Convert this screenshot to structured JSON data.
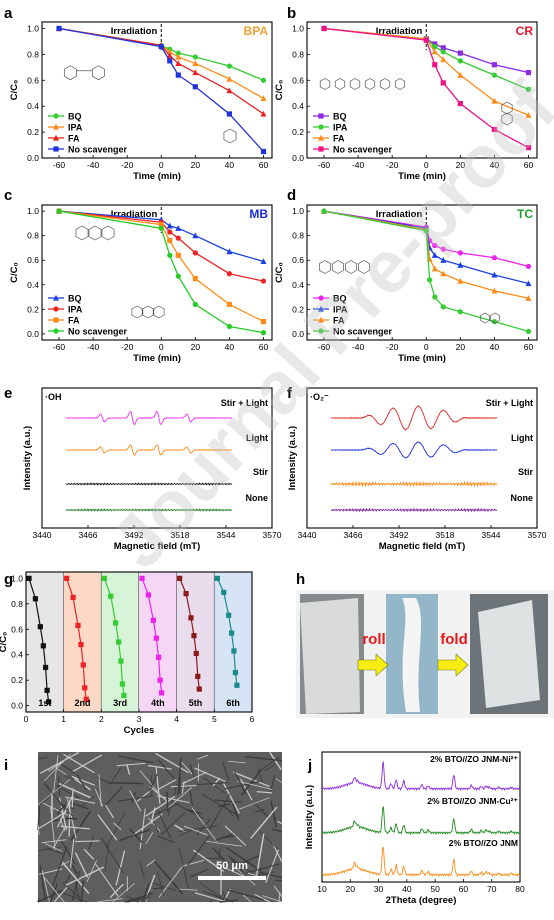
{
  "watermark": "Journal Pre-proof",
  "chart_data": [
    {
      "panel": "a",
      "type": "line",
      "tag": "BPA",
      "tag_color": "#f0a030",
      "annotation": "Irradiation",
      "xlabel": "Time (min)",
      "ylabel": "C/C₀",
      "xlim": [
        -70,
        65
      ],
      "ylim": [
        0,
        1.05
      ],
      "xticks": [
        -60,
        -40,
        -20,
        0,
        20,
        40,
        60
      ],
      "yticks": [
        0.0,
        0.2,
        0.4,
        0.6,
        0.8,
        1.0
      ],
      "x": [
        -60,
        0,
        5,
        10,
        20,
        40,
        60
      ],
      "series": [
        {
          "name": "BQ",
          "color": "#33cc33",
          "marker": "circle",
          "values": [
            1.0,
            0.87,
            0.84,
            0.81,
            0.78,
            0.71,
            0.6
          ]
        },
        {
          "name": "IPA",
          "color": "#ff8c1a",
          "marker": "tri-up",
          "values": [
            1.0,
            0.87,
            0.82,
            0.78,
            0.73,
            0.61,
            0.46
          ]
        },
        {
          "name": "FA",
          "color": "#ee2222",
          "marker": "tri-up",
          "values": [
            1.0,
            0.87,
            0.79,
            0.73,
            0.66,
            0.52,
            0.34
          ]
        },
        {
          "name": "No scavenger",
          "color": "#2233dd",
          "marker": "square",
          "values": [
            1.0,
            0.86,
            0.75,
            0.64,
            0.55,
            0.34,
            0.05
          ]
        }
      ]
    },
    {
      "panel": "b",
      "type": "line",
      "tag": "CR",
      "tag_color": "#e8142a",
      "annotation": "Irradiation",
      "xlabel": "Time (min)",
      "ylabel": "C/C₀",
      "xlim": [
        -70,
        65
      ],
      "ylim": [
        0,
        1.05
      ],
      "xticks": [
        -60,
        -40,
        -20,
        0,
        20,
        40,
        60
      ],
      "yticks": [
        0.0,
        0.2,
        0.4,
        0.6,
        0.8,
        1.0
      ],
      "x": [
        -60,
        0,
        5,
        10,
        20,
        40,
        60
      ],
      "series": [
        {
          "name": "BQ",
          "color": "#8a2be2",
          "marker": "square",
          "values": [
            1.0,
            0.92,
            0.88,
            0.85,
            0.81,
            0.72,
            0.66
          ]
        },
        {
          "name": "IPA",
          "color": "#33cc33",
          "marker": "circle",
          "values": [
            1.0,
            0.92,
            0.86,
            0.82,
            0.75,
            0.64,
            0.53
          ]
        },
        {
          "name": "FA",
          "color": "#ff8c1a",
          "marker": "tri-up",
          "values": [
            1.0,
            0.92,
            0.82,
            0.76,
            0.64,
            0.44,
            0.33
          ]
        },
        {
          "name": "No scavenger",
          "color": "#ee1188",
          "marker": "square",
          "values": [
            1.0,
            0.91,
            0.72,
            0.58,
            0.42,
            0.22,
            0.08
          ]
        }
      ]
    },
    {
      "panel": "c",
      "type": "line",
      "tag": "MB",
      "tag_color": "#1a2ee0",
      "annotation": "Irradiation",
      "xlabel": "Time (min)",
      "ylabel": "C/C₀",
      "xlim": [
        -70,
        65
      ],
      "ylim": [
        -0.05,
        1.05
      ],
      "xticks": [
        -60,
        -40,
        -20,
        0,
        20,
        40,
        60
      ],
      "yticks": [
        0.0,
        0.2,
        0.4,
        0.6,
        0.8,
        1.0
      ],
      "x": [
        -60,
        0,
        5,
        10,
        20,
        40,
        60
      ],
      "series": [
        {
          "name": "BQ",
          "color": "#1a40e0",
          "marker": "tri-up",
          "values": [
            1.0,
            0.93,
            0.88,
            0.86,
            0.8,
            0.67,
            0.59
          ]
        },
        {
          "name": "IPA",
          "color": "#ee2222",
          "marker": "circle",
          "values": [
            1.0,
            0.91,
            0.83,
            0.78,
            0.66,
            0.49,
            0.43
          ]
        },
        {
          "name": "FA",
          "color": "#ff8c1a",
          "marker": "square",
          "values": [
            1.0,
            0.89,
            0.76,
            0.64,
            0.45,
            0.24,
            0.1
          ]
        },
        {
          "name": "No scavenger",
          "color": "#22cc22",
          "marker": "circle",
          "values": [
            1.0,
            0.86,
            0.64,
            0.47,
            0.24,
            0.06,
            0.01
          ]
        }
      ]
    },
    {
      "panel": "d",
      "type": "line",
      "tag": "TC",
      "tag_color": "#1f9e2a",
      "annotation": "Irradiation",
      "xlabel": "Time (min)",
      "ylabel": "C/C₀",
      "xlim": [
        -70,
        65
      ],
      "ylim": [
        -0.05,
        1.05
      ],
      "xticks": [
        -60,
        -40,
        -20,
        0,
        20,
        40,
        60
      ],
      "yticks": [
        0.0,
        0.2,
        0.4,
        0.6,
        0.8,
        1.0
      ],
      "x": [
        -60,
        0,
        2,
        5,
        10,
        20,
        40,
        60
      ],
      "series": [
        {
          "name": "BQ",
          "color": "#ee22ee",
          "marker": "circle",
          "values": [
            1.0,
            0.87,
            0.76,
            0.72,
            0.69,
            0.66,
            0.62,
            0.55
          ]
        },
        {
          "name": "IPA",
          "color": "#1a40e0",
          "marker": "tri-up",
          "values": [
            1.0,
            0.86,
            0.7,
            0.64,
            0.6,
            0.56,
            0.48,
            0.41
          ]
        },
        {
          "name": "FA",
          "color": "#ff8c1a",
          "marker": "tri-up",
          "values": [
            1.0,
            0.85,
            0.61,
            0.53,
            0.49,
            0.43,
            0.35,
            0.29
          ]
        },
        {
          "name": "No scavenger",
          "color": "#33cc33",
          "marker": "circle",
          "values": [
            1.0,
            0.84,
            0.44,
            0.3,
            0.22,
            0.18,
            0.1,
            0.02
          ]
        }
      ]
    },
    {
      "panel": "e",
      "type": "line",
      "species": "·OH",
      "xlabel": "Magnetic field (mT)",
      "ylabel": "Intensity (a.u.)",
      "xlim": [
        3440,
        3570
      ],
      "xticks": [
        3440,
        3466,
        3492,
        3518,
        3544,
        3570
      ],
      "series": [
        {
          "name": "Stir + Light",
          "color": "#ee33ee"
        },
        {
          "name": "Light",
          "color": "#ff8c1a"
        },
        {
          "name": "Stir",
          "color": "#111111"
        },
        {
          "name": "None",
          "color": "#1b7a1b"
        }
      ]
    },
    {
      "panel": "f",
      "type": "line",
      "species": "·O₂⁻",
      "xlabel": "Magnetic field (mT)",
      "ylabel": "Intensity (a.u.)",
      "xlim": [
        3440,
        3570
      ],
      "xticks": [
        3440,
        3466,
        3492,
        3518,
        3544,
        3570
      ],
      "series": [
        {
          "name": "Stir + Light",
          "color": "#e02020"
        },
        {
          "name": "Light",
          "color": "#1a2ee0"
        },
        {
          "name": "Stir",
          "color": "#ff8c1a"
        },
        {
          "name": "None",
          "color": "#7b1f9e"
        }
      ]
    },
    {
      "panel": "g",
      "type": "line",
      "xlabel": "Cycles",
      "ylabel": "C/C₀",
      "xlim": [
        0,
        6
      ],
      "ylim": [
        -0.05,
        1.05
      ],
      "xticks": [
        0,
        1,
        2,
        3,
        4,
        5,
        6
      ],
      "yticks": [
        0.0,
        0.2,
        0.4,
        0.6,
        0.8,
        1.0
      ],
      "cycles": [
        {
          "label": "1st",
          "color": "#111111",
          "bg": "#e6e6e6",
          "values": [
            1.0,
            0.84,
            0.62,
            0.47,
            0.3,
            0.12,
            0.03
          ]
        },
        {
          "label": "2nd",
          "color": "#ee2222",
          "bg": "#fbd9c6",
          "values": [
            1.0,
            0.85,
            0.63,
            0.48,
            0.32,
            0.14,
            0.05
          ]
        },
        {
          "label": "3rd",
          "color": "#33cc33",
          "bg": "#d8f4d8",
          "values": [
            1.0,
            0.86,
            0.65,
            0.5,
            0.35,
            0.17,
            0.08
          ]
        },
        {
          "label": "4th",
          "color": "#ee22ee",
          "bg": "#f5d6f5",
          "values": [
            1.0,
            0.87,
            0.67,
            0.53,
            0.38,
            0.2,
            0.1
          ]
        },
        {
          "label": "5th",
          "color": "#8b1a1a",
          "bg": "#e8dced",
          "values": [
            1.0,
            0.88,
            0.69,
            0.55,
            0.41,
            0.23,
            0.13
          ]
        },
        {
          "label": "6th",
          "color": "#1a8a8a",
          "bg": "#d6e4f5",
          "values": [
            1.0,
            0.89,
            0.71,
            0.57,
            0.43,
            0.26,
            0.16
          ]
        }
      ]
    },
    {
      "panel": "h",
      "type": "photo",
      "labels": [
        "roll",
        "fold"
      ],
      "label_color": "#e81818"
    },
    {
      "panel": "i",
      "type": "micrograph",
      "scalebar": "50 μm"
    },
    {
      "panel": "j",
      "type": "line",
      "xlabel": "2Theta (degree)",
      "ylabel": "Intensity (a.u.)",
      "xlim": [
        10,
        80
      ],
      "xticks": [
        10,
        20,
        30,
        40,
        50,
        60,
        70,
        80
      ],
      "peaks": [
        21.5,
        22.5,
        31.6,
        34.4,
        36.2,
        38.9,
        45.3,
        47.5,
        56.6,
        62.8,
        66.3,
        68.0,
        69.1,
        72.5,
        76.9
      ],
      "series": [
        {
          "name": "2% BTO//ZO JNM-Ni²⁺",
          "color": "#8a2be2"
        },
        {
          "name": "2% BTO//ZO JNM-Cu²⁺",
          "color": "#1f8a1f"
        },
        {
          "name": "2% BTO//ZO JNM",
          "color": "#ff8c1a"
        }
      ]
    }
  ]
}
